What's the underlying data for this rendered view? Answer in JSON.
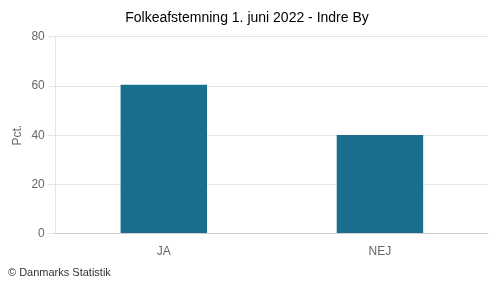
{
  "chart_data": {
    "type": "bar",
    "title": "Folkeafstemning 1. juni 2022 - Indre By",
    "categories": [
      "JA",
      "NEJ"
    ],
    "values": [
      60.5,
      40.1
    ],
    "color": "#1a6e8e",
    "ylabel": "Pct.",
    "ylim": [
      0,
      80
    ],
    "yticks": [
      0,
      20,
      40,
      60,
      80
    ],
    "grid": true,
    "annotations": [
      "© Danmarks Statistik"
    ]
  }
}
